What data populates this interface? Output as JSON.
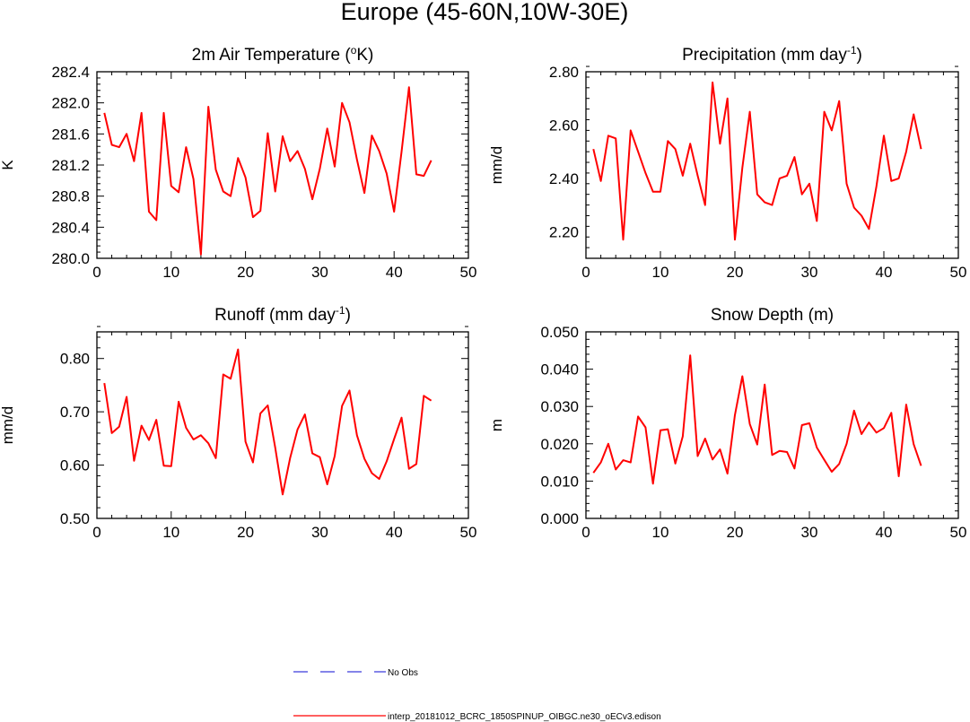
{
  "figure": {
    "title": "Europe (45-60N,10W-30E)"
  },
  "chart_data": [
    {
      "type": "line",
      "title": "2m Air Temperature (°K)",
      "title_main": "2m Air Temperature (",
      "title_sup": "o",
      "title_tail": "K)",
      "ylabel": "K",
      "xlabel": "",
      "xlim": [
        0,
        50
      ],
      "ylim": [
        280.0,
        282.4
      ],
      "xticks": [
        0,
        10,
        20,
        30,
        40,
        50
      ],
      "xtick_labels": [
        "0",
        "10",
        "20",
        "30",
        "40",
        "50"
      ],
      "yticks": [
        280.0,
        280.4,
        280.8,
        281.2,
        281.6,
        282.0,
        282.4
      ],
      "ytick_labels": [
        "280.0",
        "280.4",
        "280.8",
        "281.2",
        "281.6",
        "282.0",
        "282.4"
      ],
      "x": [
        1,
        2,
        3,
        4,
        5,
        6,
        7,
        8,
        9,
        10,
        11,
        12,
        13,
        14,
        15,
        16,
        17,
        18,
        19,
        20,
        21,
        22,
        23,
        24,
        25,
        26,
        27,
        28,
        29,
        30,
        31,
        32,
        33,
        34,
        35,
        36,
        37,
        38,
        39,
        40,
        41,
        42,
        43,
        44,
        45
      ],
      "series": [
        {
          "color": "#ff0000",
          "values": [
            281.87,
            281.46,
            281.43,
            281.6,
            281.25,
            281.87,
            280.6,
            280.49,
            281.87,
            280.93,
            280.85,
            281.43,
            281.02,
            280.05,
            281.95,
            281.14,
            280.86,
            280.8,
            281.29,
            281.04,
            280.53,
            280.61,
            281.61,
            280.86,
            281.57,
            281.25,
            281.38,
            281.15,
            280.76,
            281.15,
            281.67,
            281.18,
            282.0,
            281.75,
            281.27,
            280.84,
            281.58,
            281.38,
            281.09,
            280.6,
            281.37,
            282.2,
            281.08,
            281.06,
            281.26
          ]
        }
      ]
    },
    {
      "type": "line",
      "title": "Precipitation (mm day-1)",
      "title_main": "Precipitation (mm day",
      "title_sup": "-1",
      "title_tail": ")",
      "ylabel": "mm/d",
      "xlabel": "",
      "xlim": [
        0,
        50
      ],
      "ylim": [
        2.1,
        2.8
      ],
      "xticks": [
        0,
        10,
        20,
        30,
        40,
        50
      ],
      "xtick_labels": [
        "0",
        "10",
        "20",
        "30",
        "40",
        "50"
      ],
      "yticks": [
        2.2,
        2.4,
        2.6,
        2.8
      ],
      "ytick_labels": [
        "2.20",
        "2.40",
        "2.60",
        "2.80"
      ],
      "x": [
        1,
        2,
        3,
        4,
        5,
        6,
        7,
        8,
        9,
        10,
        11,
        12,
        13,
        14,
        15,
        16,
        17,
        18,
        19,
        20,
        21,
        22,
        23,
        24,
        25,
        26,
        27,
        28,
        29,
        30,
        31,
        32,
        33,
        34,
        35,
        36,
        37,
        38,
        39,
        40,
        41,
        42,
        43,
        44,
        45
      ],
      "series": [
        {
          "color": "#ff0000",
          "values": [
            2.51,
            2.39,
            2.56,
            2.55,
            2.17,
            2.58,
            2.5,
            2.42,
            2.35,
            2.35,
            2.54,
            2.51,
            2.41,
            2.53,
            2.41,
            2.3,
            2.76,
            2.53,
            2.7,
            2.17,
            2.44,
            2.65,
            2.34,
            2.31,
            2.3,
            2.4,
            2.41,
            2.48,
            2.34,
            2.38,
            2.24,
            2.65,
            2.58,
            2.69,
            2.38,
            2.29,
            2.26,
            2.21,
            2.37,
            2.56,
            2.39,
            2.4,
            2.5,
            2.64,
            2.51
          ]
        }
      ]
    },
    {
      "type": "line",
      "title": "Runoff (mm day-1)",
      "title_main": "Runoff (mm day",
      "title_sup": "-1",
      "title_tail": ")",
      "ylabel": "mm/d",
      "xlabel": "",
      "xlim": [
        0,
        50
      ],
      "ylim": [
        0.5,
        0.85
      ],
      "xticks": [
        0,
        10,
        20,
        30,
        40,
        50
      ],
      "xtick_labels": [
        "0",
        "10",
        "20",
        "30",
        "40",
        "50"
      ],
      "yticks": [
        0.5,
        0.6,
        0.7,
        0.8
      ],
      "ytick_labels": [
        "0.50",
        "0.60",
        "0.70",
        "0.80"
      ],
      "x": [
        1,
        2,
        3,
        4,
        5,
        6,
        7,
        8,
        9,
        10,
        11,
        12,
        13,
        14,
        15,
        16,
        17,
        18,
        19,
        20,
        21,
        22,
        23,
        24,
        25,
        26,
        27,
        28,
        29,
        30,
        31,
        32,
        33,
        34,
        35,
        36,
        37,
        38,
        39,
        40,
        41,
        42,
        43,
        44,
        45
      ],
      "series": [
        {
          "color": "#ff0000",
          "values": [
            0.754,
            0.66,
            0.672,
            0.728,
            0.608,
            0.674,
            0.647,
            0.685,
            0.599,
            0.598,
            0.719,
            0.67,
            0.648,
            0.656,
            0.641,
            0.613,
            0.77,
            0.762,
            0.817,
            0.644,
            0.605,
            0.697,
            0.712,
            0.633,
            0.545,
            0.613,
            0.667,
            0.695,
            0.622,
            0.615,
            0.564,
            0.617,
            0.711,
            0.74,
            0.656,
            0.612,
            0.585,
            0.574,
            0.607,
            0.649,
            0.689,
            0.593,
            0.602,
            0.73,
            0.721
          ]
        }
      ]
    },
    {
      "type": "line",
      "title": "Snow Depth (m)",
      "title_main": "Snow Depth (m)",
      "title_sup": "",
      "title_tail": "",
      "ylabel": "m",
      "xlabel": "",
      "xlim": [
        0,
        50
      ],
      "ylim": [
        0.0,
        0.05
      ],
      "xticks": [
        0,
        10,
        20,
        30,
        40,
        50
      ],
      "xtick_labels": [
        "0",
        "10",
        "20",
        "30",
        "40",
        "50"
      ],
      "yticks": [
        0.0,
        0.01,
        0.02,
        0.03,
        0.04,
        0.05
      ],
      "ytick_labels": [
        "0.000",
        "0.010",
        "0.020",
        "0.030",
        "0.040",
        "0.050"
      ],
      "x": [
        1,
        2,
        3,
        4,
        5,
        6,
        7,
        8,
        9,
        10,
        11,
        12,
        13,
        14,
        15,
        16,
        17,
        18,
        19,
        20,
        21,
        22,
        23,
        24,
        25,
        26,
        27,
        28,
        29,
        30,
        31,
        32,
        33,
        34,
        35,
        36,
        37,
        38,
        39,
        40,
        41,
        42,
        43,
        44,
        45
      ],
      "series": [
        {
          "color": "#ff0000",
          "values": [
            0.0122,
            0.015,
            0.02,
            0.0131,
            0.0156,
            0.015,
            0.0273,
            0.0244,
            0.0093,
            0.0236,
            0.0239,
            0.0147,
            0.022,
            0.0437,
            0.0167,
            0.0214,
            0.0158,
            0.0185,
            0.012,
            0.0277,
            0.0381,
            0.0253,
            0.0198,
            0.0359,
            0.017,
            0.0181,
            0.0178,
            0.0134,
            0.025,
            0.0255,
            0.019,
            0.0157,
            0.0125,
            0.0146,
            0.02,
            0.0289,
            0.0226,
            0.0257,
            0.023,
            0.0242,
            0.0283,
            0.0113,
            0.0305,
            0.0199,
            0.0141
          ]
        }
      ]
    }
  ],
  "legend": {
    "items": [
      {
        "label": "No Obs",
        "color": "#3a3adc",
        "dash": "dashed"
      },
      {
        "label": "interp_20181012_BCRC_1850SPINUP_OIBGC.ne30_oECv3.edison",
        "color": "#ff0000",
        "dash": "solid"
      }
    ]
  }
}
